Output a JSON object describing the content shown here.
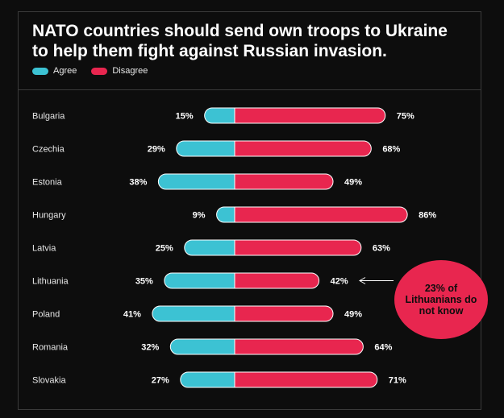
{
  "title": "NATO countries should send own troops to Ukraine to help them fight against Russian invasion.",
  "legend": {
    "agree": "Agree",
    "disagree": "Disagree"
  },
  "colors": {
    "agree": "#3cc2d3",
    "disagree": "#e8264f",
    "background": "#0d0d0d",
    "text": "#ffffff"
  },
  "annotation": {
    "text": "23% of Lithuanians do not know",
    "target": "Lithuania"
  },
  "chart_data": {
    "type": "bar",
    "orientation": "diverging-horizontal",
    "categories": [
      "Bulgaria",
      "Czechia",
      "Estonia",
      "Hungary",
      "Latvia",
      "Lithuania",
      "Poland",
      "Romania",
      "Slovakia"
    ],
    "series": [
      {
        "name": "Agree",
        "values": [
          15,
          29,
          38,
          9,
          25,
          35,
          41,
          32,
          27
        ]
      },
      {
        "name": "Disagree",
        "values": [
          75,
          68,
          49,
          86,
          63,
          42,
          49,
          64,
          71
        ]
      }
    ],
    "value_labels": {
      "agree": [
        "15%",
        "29%",
        "38%",
        "9%",
        "25%",
        "35%",
        "41%",
        "32%",
        "27%"
      ],
      "disagree": [
        "75%",
        "68%",
        "49%",
        "86%",
        "63%",
        "42%",
        "49%",
        "64%",
        "71%"
      ]
    },
    "legend_position": "top-left",
    "grid": false
  }
}
